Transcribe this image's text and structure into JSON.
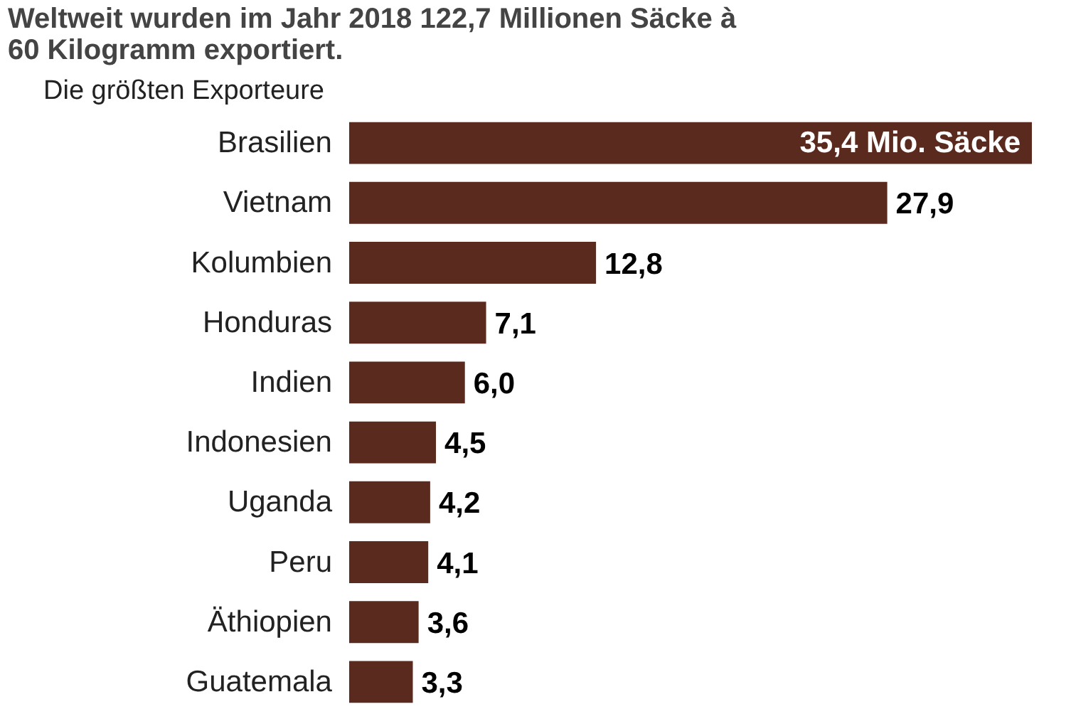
{
  "chart_data": {
    "type": "bar",
    "orientation": "horizontal",
    "title": "Weltweit wurden im Jahr 2018 122,7 Millionen Säcke à 60 Kilogramm exportiert.",
    "subtitle": "Die größten Exporteure",
    "categories": [
      "Brasilien",
      "Vietnam",
      "Kolumbien",
      "Honduras",
      "Indien",
      "Indonesien",
      "Uganda",
      "Peru",
      "Äthiopien",
      "Guatemala"
    ],
    "values": [
      35.4,
      27.9,
      12.8,
      7.1,
      6.0,
      4.5,
      4.2,
      4.1,
      3.6,
      3.3
    ],
    "value_labels": [
      "35,4 Mio. Säcke",
      "27,9",
      "12,8",
      "7,1",
      "6,0",
      "4,5",
      "4,2",
      "4,1",
      "3,6",
      "3,3"
    ],
    "color": "#5a2a1e",
    "grid": false
  }
}
